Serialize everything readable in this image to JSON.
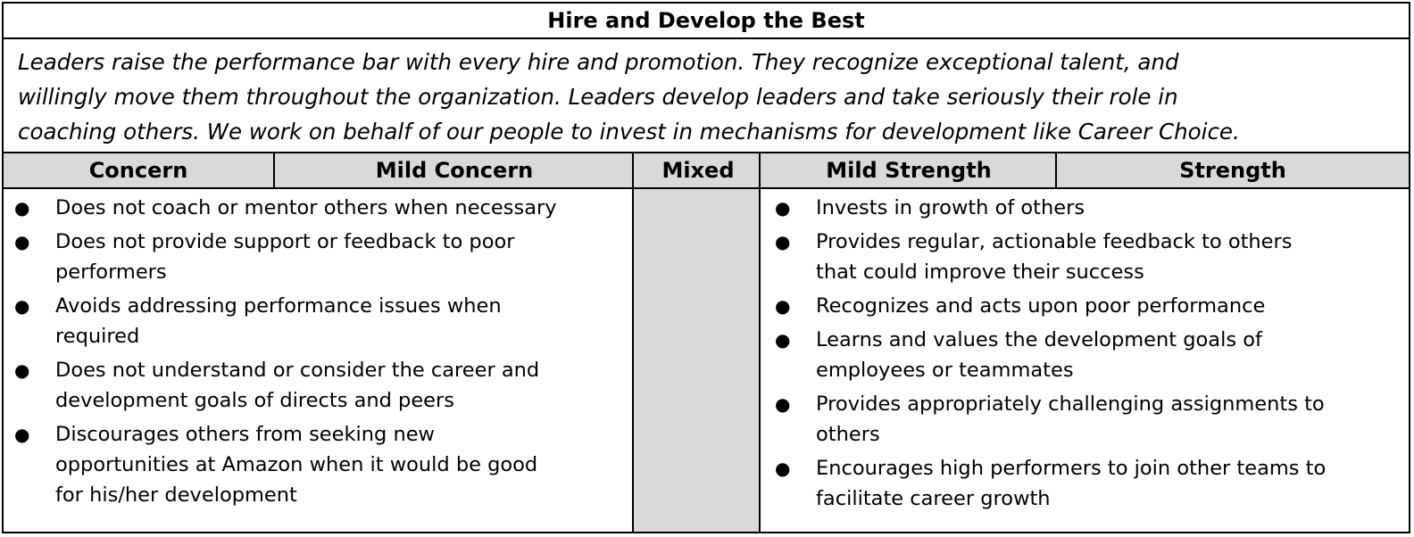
{
  "title": "Hire and Develop the Best",
  "description_lines": [
    "Leaders raise the performance bar with every hire and promotion. They recognize exceptional talent, and",
    "willingly move them throughout the organization. Leaders develop leaders and take seriously their role in",
    "coaching others. We work on behalf of our people to invest in mechanisms for development like Career Choice."
  ],
  "headers": {
    "concern": "Concern",
    "mild_concern": "Mild Concern",
    "mixed": "Mixed",
    "mild_strength": "Mild Strength",
    "strength": "Strength"
  },
  "bullet_glyph": "●",
  "concern_items": [
    [
      "Does not coach or mentor others when necessary"
    ],
    [
      "Does not provide support or feedback to poor",
      "performers"
    ],
    [
      "Avoids addressing performance issues when",
      "required"
    ],
    [
      "Does not understand or consider the career and",
      "development goals of directs and peers"
    ],
    [
      "Discourages others from seeking new",
      "opportunities at Amazon when it would be good",
      "for his/her development"
    ]
  ],
  "strength_items": [
    [
      "Invests in growth of others"
    ],
    [
      "Provides regular, actionable feedback to others",
      "that could improve their success"
    ],
    [
      "Recognizes and acts upon poor performance"
    ],
    [
      "Learns and values the development goals of",
      "employees or teammates"
    ],
    [
      "Provides appropriately challenging assignments to",
      "others"
    ],
    [
      "Encourages high performers to join other teams to",
      "facilitate career growth"
    ]
  ]
}
